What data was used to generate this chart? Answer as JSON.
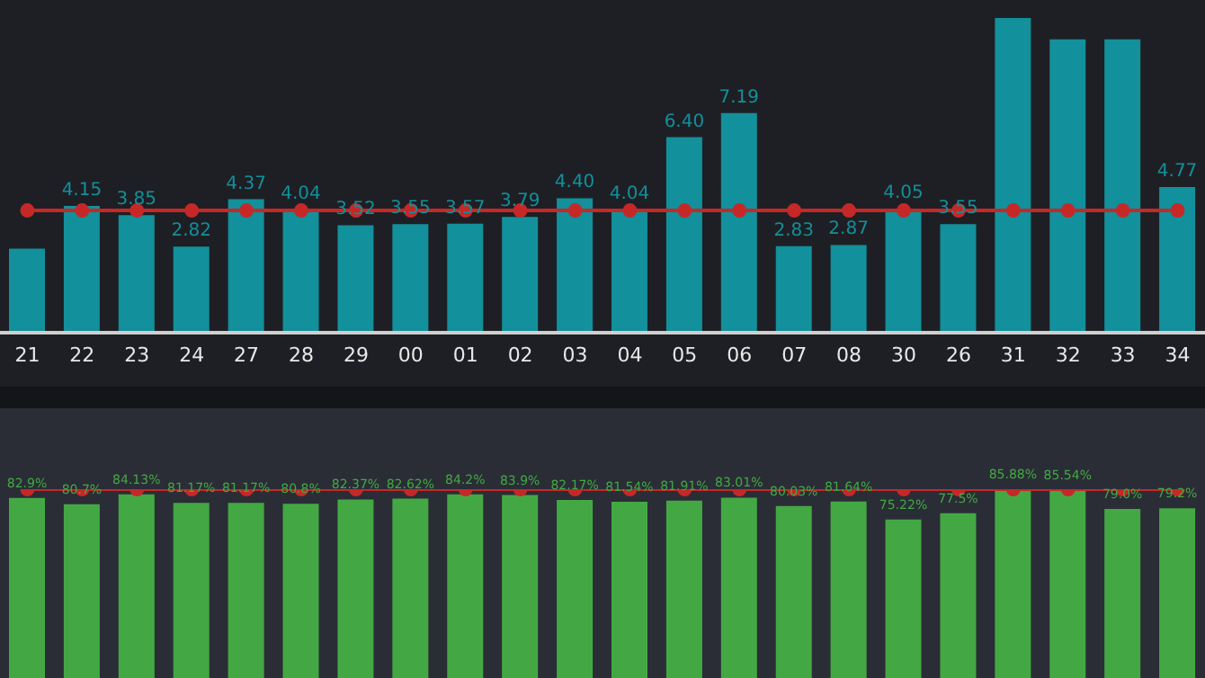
{
  "chart_data": [
    {
      "type": "bar",
      "marker": "circle",
      "categories": [
        "21",
        "22",
        "23",
        "24",
        "27",
        "28",
        "29",
        "00",
        "01",
        "02",
        "03",
        "04",
        "05",
        "06",
        "07",
        "08",
        "30",
        "26",
        "31",
        "32",
        "33",
        "34"
      ],
      "series": [
        {
          "color": "#12909b",
          "values": [
            2.75,
            4.15,
            3.85,
            2.82,
            4.37,
            4.04,
            3.52,
            3.55,
            3.57,
            3.79,
            4.4,
            4.04,
            6.4,
            7.19,
            2.83,
            2.87,
            4.05,
            3.55,
            10.3,
            9.6,
            9.6,
            4.77
          ],
          "value_labels": [
            null,
            "4.15",
            "3.85",
            "2.82",
            "4.37",
            "4.04",
            "3.52",
            "3.55",
            "3.57",
            "3.79",
            "4.40",
            "4.04",
            "6.40",
            "7.19",
            "2.83",
            "2.87",
            "4.05",
            "3.55",
            null,
            null,
            null,
            "4.77"
          ]
        },
        {
          "type": "line",
          "color": "#c62828",
          "values": [
            4.0,
            4.0,
            4.0,
            4.0,
            4.0,
            4.0,
            4.0,
            4.0,
            4.0,
            4.0,
            4.0,
            4.0,
            4.0,
            4.0,
            4.0,
            4.0,
            4.0,
            4.0,
            4.0,
            4.0,
            4.0,
            4.0
          ]
        }
      ]
    },
    {
      "type": "bar",
      "marker": "circle",
      "tick_labels": false,
      "categories": [
        null,
        null,
        null,
        null,
        null,
        null,
        null,
        null,
        null,
        null,
        null,
        null,
        null,
        null,
        null,
        null,
        null,
        null,
        null,
        null,
        null,
        null
      ],
      "series": [
        {
          "color": "#43a843",
          "values": [
            82.9,
            80.7,
            84.13,
            81.17,
            81.17,
            80.8,
            82.37,
            82.62,
            84.2,
            83.9,
            82.17,
            81.54,
            81.91,
            83.01,
            80.03,
            81.64,
            75.22,
            77.5,
            85.88,
            85.54,
            79.0,
            79.2
          ],
          "value_labels": [
            "82.9%",
            "80.7%",
            "84.13%",
            "81.17%",
            "81.17%",
            "80.8%",
            "82.37%",
            "82.62%",
            "84.2%",
            "83.9%",
            "82.17%",
            "81.54%",
            "81.91%",
            "83.01%",
            "80.03%",
            "81.64%",
            "75.22%",
            "77.5%",
            "85.88%",
            "85.54%",
            "79.0%",
            "79.2%"
          ]
        },
        {
          "type": "line",
          "color": "#c62828",
          "values": [
            86,
            86,
            86,
            86,
            86,
            86,
            86,
            86,
            86,
            86,
            86,
            86,
            86,
            86,
            86,
            86,
            86,
            86,
            86,
            86,
            86,
            86
          ]
        }
      ]
    }
  ]
}
